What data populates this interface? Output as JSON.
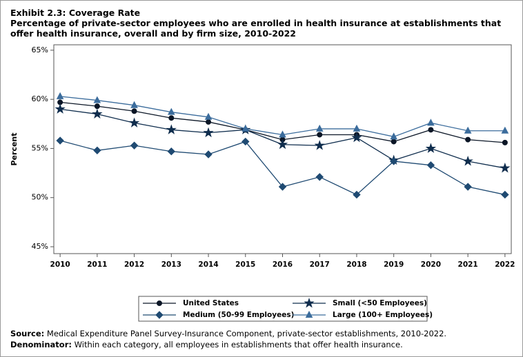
{
  "chart_data": {
    "type": "line",
    "title": "Exhibit 2.3: Coverage Rate",
    "subtitle": "Percentage of private-sector employees who are enrolled in health insurance at establishments that offer health insurance, overall and by firm size, 2010-2022",
    "y_label": "Percent",
    "x": [
      2010,
      2011,
      2012,
      2013,
      2014,
      2015,
      2016,
      2017,
      2018,
      2019,
      2020,
      2021,
      2022
    ],
    "xlim": [
      2009.83,
      2022.17
    ],
    "xticks": [
      2010,
      2011,
      2012,
      2013,
      2014,
      2015,
      2016,
      2017,
      2018,
      2019,
      2020,
      2021,
      2022
    ],
    "ylim": [
      44.3,
      65.55
    ],
    "yticks": [
      {
        "value": 45,
        "label": "45%"
      },
      {
        "value": 50,
        "label": "50%"
      },
      {
        "value": 55,
        "label": "55%"
      },
      {
        "value": 60,
        "label": "60%"
      },
      {
        "value": 65,
        "label": "65%"
      }
    ],
    "series": [
      {
        "name": "United States",
        "color": "#0b1626",
        "marker": "circle",
        "values": [
          59.7,
          59.3,
          58.8,
          58.1,
          57.7,
          56.9,
          55.9,
          56.4,
          56.4,
          55.7,
          56.9,
          55.9,
          55.6
        ]
      },
      {
        "name": "Small (<50 Employees)",
        "color": "#0f2d4d",
        "marker": "star",
        "values": [
          59.0,
          58.5,
          57.6,
          56.9,
          56.6,
          56.9,
          55.4,
          55.3,
          56.1,
          53.8,
          55.0,
          53.7,
          53.0
        ]
      },
      {
        "name": "Medium (50-99 Employees)",
        "color": "#1f4a72",
        "marker": "diamond",
        "values": [
          55.8,
          54.8,
          55.3,
          54.7,
          54.4,
          55.7,
          51.1,
          52.1,
          50.3,
          53.7,
          53.3,
          51.1,
          50.3
        ]
      },
      {
        "name": "Large (100+ Employees)",
        "color": "#3b6c9c",
        "marker": "triangle",
        "values": [
          60.3,
          59.9,
          59.4,
          58.7,
          58.2,
          57.0,
          56.4,
          57.0,
          57.0,
          56.2,
          57.6,
          56.8,
          56.8
        ]
      }
    ],
    "notes": [
      {
        "label": "Source:",
        "text": "Medical Expenditure Panel Survey-Insurance Component, private-sector establishments, 2010-2022."
      },
      {
        "label": "Denominator:",
        "text": "Within each category, all employees in establishments that offer health insurance."
      }
    ]
  }
}
